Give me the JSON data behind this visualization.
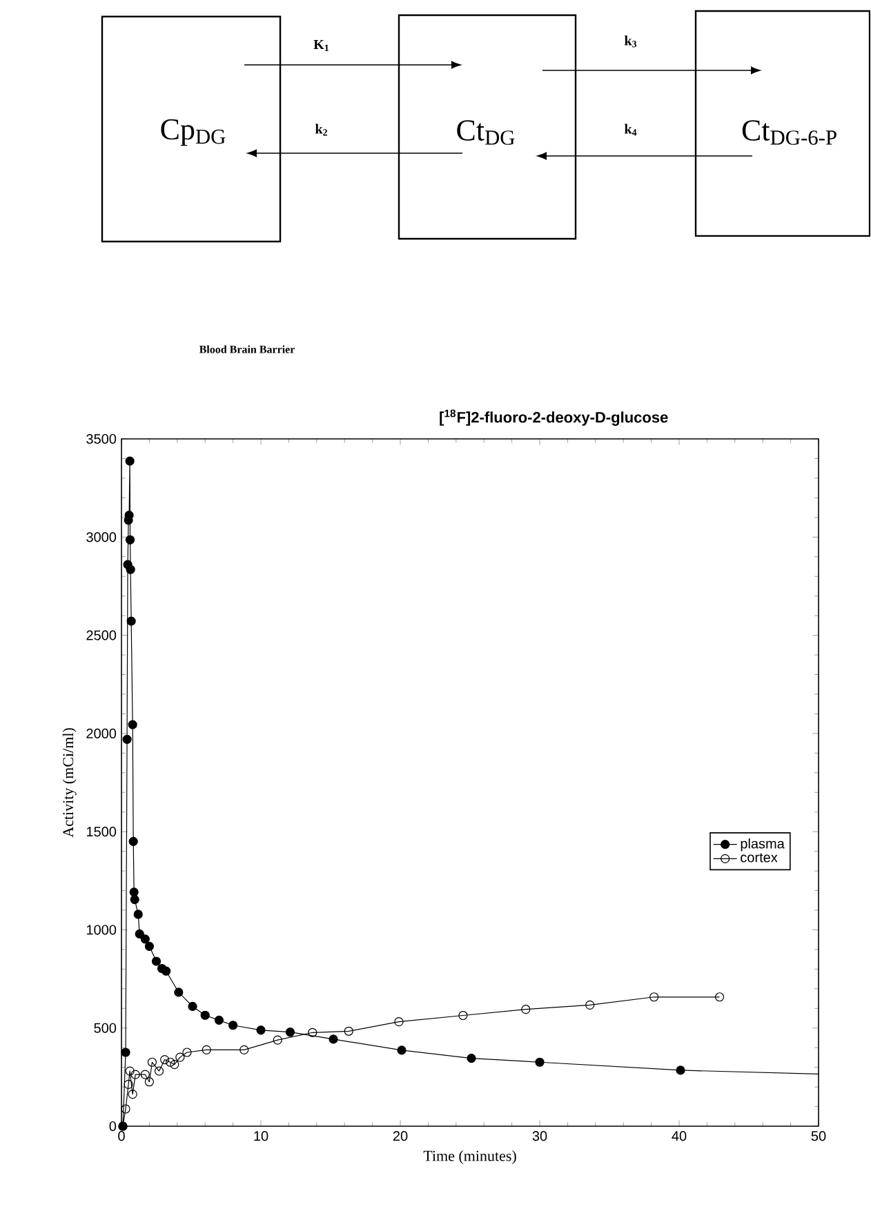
{
  "chart_data": {
    "type": "line",
    "title": "[$^{18}$F]2-fluoro-2-deoxy-D-glucose",
    "xlabel": "Time (minutes)",
    "ylabel": "Activity (mCi/ml)",
    "annotations": [
      "Cp$_{DG}$",
      "Ct$_{DG}$",
      "Ct$_{DG-6-P}$",
      "K$_{1}$",
      "k$_{2}$",
      "k$_{3}$",
      "k$_{4}$",
      "Blood Brain Barrier"
    ],
    "xlim": [
      0,
      50
    ],
    "xticks": [
      0,
      10,
      20,
      30,
      40,
      50
    ],
    "ylim": [
      0,
      3500
    ],
    "yticks": [
      0,
      500,
      1000,
      1500,
      2000,
      2500,
      3000,
      3500
    ],
    "grid": false,
    "legend": "right",
    "series": [
      {
        "name": "plasma",
        "color": "#000000",
        "marker": "circle",
        "x": [
          0.1,
          0.3,
          0.4,
          0.45,
          0.5,
          0.55,
          0.6,
          0.62,
          0.65,
          0.7,
          0.8,
          0.85,
          0.9,
          0.95,
          1.2,
          1.3,
          1.7,
          2.0,
          2.5,
          2.9,
          3.2,
          4.1,
          5.1,
          6.0,
          7.0,
          8.0,
          10.0,
          12.1,
          15.2,
          20.1,
          25.1,
          30.0,
          40.1
        ],
        "values": [
          0,
          376,
          1970,
          2860,
          3086,
          3111,
          3387,
          2986,
          2835,
          2572,
          2045,
          1450,
          1192,
          1154,
          1079,
          979,
          953,
          916,
          840,
          803,
          790,
          682,
          610,
          565,
          540,
          514,
          489,
          479,
          443,
          387,
          346,
          326,
          285
        ]
      },
      {
        "name": "cortex",
        "color": "#000000",
        "marker": "open circle",
        "x": [
          0.1,
          0.3,
          0.5,
          0.6,
          0.8,
          1.0,
          1.7,
          2.0,
          2.2,
          2.7,
          3.1,
          3.5,
          3.8,
          4.2,
          4.7,
          6.1,
          8.8,
          11.2,
          13.7,
          16.3,
          19.9,
          24.5,
          29.0,
          33.6,
          38.2,
          42.9
        ],
        "values": [
          0,
          88,
          213,
          281,
          163,
          263,
          263,
          226,
          326,
          281,
          339,
          326,
          314,
          351,
          376,
          389,
          389,
          439,
          477,
          484,
          532,
          564,
          595,
          617,
          658,
          658
        ]
      },
      {
        "color": "#000000",
        "marker": "none",
        "x": [
          40.1,
          50
        ],
        "values": [
          285,
          266
        ]
      }
    ]
  }
}
